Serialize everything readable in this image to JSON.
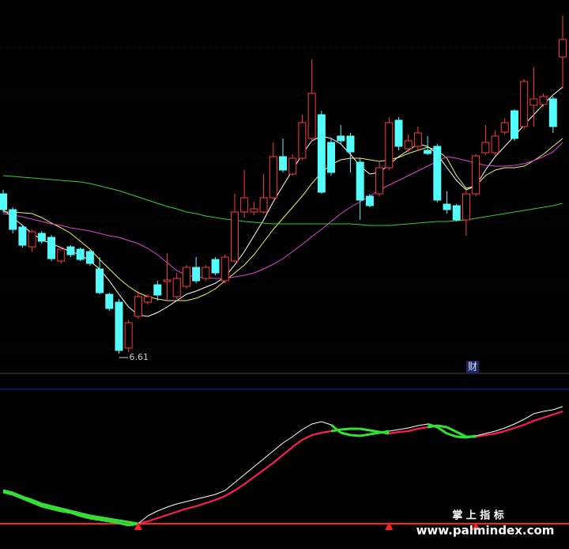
{
  "chart_data": [
    {
      "type": "candlestick",
      "open": [
        8.63,
        8.43,
        8.21,
        7.96,
        8.13,
        8.08,
        7.78,
        7.96,
        7.93,
        7.9,
        7.68,
        7.36,
        7.26,
        6.68,
        7.08,
        7.26,
        7.48,
        7.52,
        7.33,
        7.46,
        7.7,
        7.56,
        7.8,
        7.53,
        7.78,
        8.4,
        8.4,
        8.4,
        8.58,
        9.1,
        8.88,
        9.08,
        9.33,
        9.63,
        9.28,
        9.36,
        9.36,
        9.03,
        8.6,
        8.63,
        8.96,
        9.56,
        9.2,
        9.23,
        9.18,
        9.23,
        8.5,
        8.48,
        8.3,
        8.63,
        9.15,
        9.15,
        9.41,
        9.68,
        9.48,
        9.75,
        9.76,
        9.83,
        10.36
      ],
      "high": [
        8.68,
        8.46,
        8.24,
        8.18,
        8.16,
        8.11,
        7.96,
        7.98,
        7.95,
        7.92,
        7.83,
        7.38,
        7.3,
        7.03,
        7.4,
        7.36,
        7.53,
        7.88,
        7.63,
        7.73,
        7.83,
        7.73,
        7.83,
        7.86,
        8.63,
        8.93,
        8.53,
        8.88,
        9.28,
        9.33,
        9.13,
        9.63,
        10.33,
        9.68,
        9.33,
        9.5,
        9.4,
        9.08,
        8.63,
        9.03,
        9.6,
        9.6,
        9.38,
        9.48,
        9.36,
        9.26,
        8.66,
        8.5,
        8.68,
        9.13,
        9.5,
        9.43,
        9.58,
        9.7,
        10.08,
        10.23,
        9.9,
        9.86,
        10.88
      ],
      "low": [
        8.4,
        8.13,
        7.95,
        7.9,
        8.0,
        7.78,
        7.75,
        7.83,
        7.78,
        7.72,
        7.36,
        7.15,
        6.61,
        6.63,
        7.05,
        7.23,
        7.28,
        7.28,
        7.3,
        7.43,
        7.5,
        7.53,
        7.6,
        7.5,
        7.76,
        8.33,
        8.36,
        8.38,
        8.56,
        8.9,
        8.86,
        9.06,
        9.3,
        8.63,
        8.86,
        9.26,
        8.9,
        8.3,
        8.46,
        8.6,
        8.93,
        9.18,
        9.16,
        9.18,
        9.12,
        8.52,
        8.38,
        8.28,
        8.1,
        8.6,
        9.12,
        9.12,
        9.38,
        9.3,
        9.45,
        9.48,
        9.73,
        9.4,
        9.96
      ],
      "close": [
        8.43,
        8.18,
        7.98,
        8.15,
        8.03,
        7.81,
        7.93,
        7.86,
        7.8,
        7.75,
        7.38,
        7.18,
        6.65,
        7.0,
        7.33,
        7.33,
        7.35,
        7.54,
        7.56,
        7.7,
        7.53,
        7.7,
        7.63,
        7.83,
        8.4,
        8.58,
        8.44,
        8.58,
        9.1,
        8.93,
        9.08,
        9.53,
        9.9,
        8.65,
        8.9,
        9.3,
        9.16,
        8.55,
        8.48,
        8.96,
        9.53,
        9.23,
        9.3,
        9.4,
        9.14,
        8.55,
        8.43,
        8.3,
        8.63,
        9.11,
        9.28,
        9.36,
        9.53,
        9.33,
        10.05,
        9.83,
        9.86,
        9.48,
        10.58
      ],
      "up_color": "#ff3a3a",
      "down_color": "#54fcfc",
      "ylim": [
        6.38,
        11.08
      ],
      "low_label": "6.61",
      "lines": [
        {
          "color": "#ffffff",
          "values": [
            8.43,
            8.33,
            8.23,
            8.13,
            8.05,
            8.0,
            7.95,
            7.9,
            7.86,
            7.78,
            7.68,
            7.53,
            7.36,
            7.2,
            7.1,
            7.08,
            7.13,
            7.2,
            7.28,
            7.36,
            7.4,
            7.45,
            7.5,
            7.58,
            7.73,
            7.9,
            8.1,
            8.3,
            8.53,
            8.73,
            8.93,
            9.13,
            9.3,
            9.36,
            9.33,
            9.26,
            9.13,
            8.98,
            8.88,
            8.9,
            9.0,
            9.1,
            9.18,
            9.26,
            9.23,
            9.13,
            8.96,
            8.8,
            8.68,
            8.73,
            8.93,
            9.1,
            9.23,
            9.36,
            9.5,
            9.63,
            9.76,
            9.88,
            9.98
          ]
        },
        {
          "color": "#f0f060",
          "values": [
            8.4,
            8.4,
            8.39,
            8.38,
            8.33,
            8.26,
            8.2,
            8.13,
            8.03,
            7.93,
            7.8,
            7.68,
            7.56,
            7.46,
            7.38,
            7.33,
            7.3,
            7.28,
            7.28,
            7.28,
            7.31,
            7.36,
            7.43,
            7.53,
            7.63,
            7.73,
            7.86,
            8.02,
            8.18,
            8.32,
            8.46,
            8.6,
            8.76,
            8.9,
            9.0,
            9.06,
            9.08,
            9.08,
            9.06,
            9.04,
            9.06,
            9.09,
            9.14,
            9.18,
            9.22,
            9.18,
            9.08,
            8.86,
            8.7,
            8.73,
            8.86,
            8.93,
            8.96,
            8.96,
            8.98,
            9.05,
            9.13,
            9.23,
            9.33
          ]
        },
        {
          "color": "#e040e0",
          "values": [
            8.38,
            8.36,
            8.34,
            8.31,
            8.28,
            8.25,
            8.23,
            8.2,
            8.18,
            8.16,
            8.13,
            8.1,
            8.08,
            8.04,
            8.0,
            7.94,
            7.86,
            7.76,
            7.66,
            7.6,
            7.58,
            7.57,
            7.56,
            7.56,
            7.58,
            7.6,
            7.63,
            7.68,
            7.74,
            7.81,
            7.9,
            7.99,
            8.09,
            8.18,
            8.28,
            8.38,
            8.46,
            8.53,
            8.6,
            8.68,
            8.74,
            8.8,
            8.86,
            8.92,
            8.98,
            9.04,
            9.1,
            9.08,
            9.05,
            9.02,
            8.99,
            8.98,
            8.98,
            8.99,
            9.01,
            9.05,
            9.1,
            9.16,
            9.28
          ]
        },
        {
          "color": "#30d030",
          "values": [
            8.86,
            8.85,
            8.84,
            8.83,
            8.82,
            8.81,
            8.8,
            8.79,
            8.78,
            8.76,
            8.73,
            8.7,
            8.67,
            8.63,
            8.59,
            8.55,
            8.51,
            8.47,
            8.44,
            8.4,
            8.38,
            8.35,
            8.33,
            8.31,
            8.3,
            8.28,
            8.27,
            8.26,
            8.25,
            8.25,
            8.25,
            8.25,
            8.25,
            8.25,
            8.25,
            8.25,
            8.25,
            8.24,
            8.23,
            8.23,
            8.23,
            8.24,
            8.25,
            8.26,
            8.27,
            8.28,
            8.28,
            8.29,
            8.3,
            8.32,
            8.34,
            8.36,
            8.38,
            8.4,
            8.42,
            8.44,
            8.46,
            8.48,
            8.51
          ]
        }
      ]
    },
    {
      "type": "line",
      "ylim": [
        6,
        200
      ],
      "reference": 38,
      "reference_color": "#ff2020",
      "cross_color": "#33e033",
      "series": [
        {
          "color": "#ffffff",
          "values": [
            78,
            75,
            70,
            65,
            60,
            57,
            54,
            52,
            48,
            45,
            43,
            41,
            39,
            36,
            38,
            48,
            54,
            59,
            63,
            66,
            69,
            72,
            75,
            80,
            90,
            100,
            110,
            120,
            130,
            140,
            148,
            157,
            164,
            167,
            163,
            153,
            150,
            149,
            151,
            153,
            155,
            157,
            159,
            162,
            164,
            160,
            152,
            148,
            147,
            149,
            152,
            155,
            159,
            164,
            170,
            177,
            180,
            182,
            186
          ]
        },
        {
          "color": "#ff1a5a",
          "values": [
            80,
            77,
            72,
            68,
            63,
            60,
            57,
            54,
            51,
            48,
            46,
            44,
            42,
            40,
            38,
            41,
            45,
            49,
            53,
            57,
            60,
            64,
            68,
            73,
            80,
            88,
            97,
            106,
            115,
            125,
            135,
            144,
            150,
            153,
            155,
            157,
            158,
            158,
            156,
            154,
            152,
            154,
            155,
            158,
            160,
            162,
            160,
            154,
            148,
            148,
            150,
            152,
            155,
            159,
            163,
            168,
            172,
            176,
            180
          ]
        }
      ]
    }
  ],
  "page": {
    "badge": "财",
    "watermark_cn": "掌 上 指 标",
    "watermark_url": "www.palmindex.com"
  }
}
